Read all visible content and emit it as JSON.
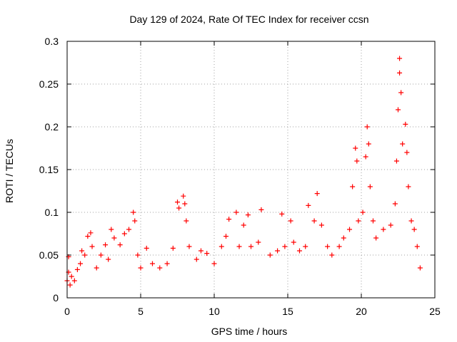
{
  "chart_data": {
    "type": "scatter",
    "title": "Day 129 of 2024, Rate Of TEC Index for receiver ccsn",
    "xlabel": "GPS time / hours",
    "ylabel": "ROTI / TECUs",
    "xlim": [
      0,
      25
    ],
    "ylim": [
      0,
      0.3
    ],
    "x_ticks": [
      "0",
      "5",
      "10",
      "15",
      "20",
      "25"
    ],
    "y_ticks": [
      "0",
      "0.05",
      "0.1",
      "0.15",
      "0.2",
      "0.25",
      "0.3"
    ],
    "grid": true,
    "legend": "none",
    "marker": "plus",
    "color": "#ff0000",
    "series": [
      {
        "points": [
          [
            0.0,
            0.02
          ],
          [
            0.1,
            0.03
          ],
          [
            0.1,
            0.048
          ],
          [
            0.2,
            0.015
          ],
          [
            0.3,
            0.025
          ],
          [
            0.5,
            0.02
          ],
          [
            0.7,
            0.033
          ],
          [
            0.9,
            0.04
          ],
          [
            1.0,
            0.055
          ],
          [
            1.2,
            0.05
          ],
          [
            1.4,
            0.072
          ],
          [
            1.6,
            0.076
          ],
          [
            1.7,
            0.06
          ],
          [
            2.0,
            0.035
          ],
          [
            2.3,
            0.05
          ],
          [
            2.6,
            0.062
          ],
          [
            2.8,
            0.045
          ],
          [
            3.0,
            0.08
          ],
          [
            3.2,
            0.07
          ],
          [
            3.6,
            0.062
          ],
          [
            3.9,
            0.075
          ],
          [
            4.2,
            0.08
          ],
          [
            4.5,
            0.1
          ],
          [
            4.6,
            0.09
          ],
          [
            4.8,
            0.05
          ],
          [
            5.0,
            0.035
          ],
          [
            5.4,
            0.058
          ],
          [
            5.8,
            0.04
          ],
          [
            6.3,
            0.035
          ],
          [
            6.8,
            0.04
          ],
          [
            7.2,
            0.058
          ],
          [
            7.5,
            0.112
          ],
          [
            7.6,
            0.105
          ],
          [
            7.9,
            0.119
          ],
          [
            8.0,
            0.11
          ],
          [
            8.1,
            0.09
          ],
          [
            8.3,
            0.06
          ],
          [
            8.8,
            0.045
          ],
          [
            9.1,
            0.055
          ],
          [
            9.5,
            0.052
          ],
          [
            10.0,
            0.04
          ],
          [
            10.5,
            0.06
          ],
          [
            10.8,
            0.072
          ],
          [
            11.0,
            0.092
          ],
          [
            11.5,
            0.1
          ],
          [
            11.7,
            0.06
          ],
          [
            12.0,
            0.085
          ],
          [
            12.3,
            0.097
          ],
          [
            12.5,
            0.06
          ],
          [
            13.0,
            0.065
          ],
          [
            13.2,
            0.103
          ],
          [
            13.8,
            0.05
          ],
          [
            14.3,
            0.055
          ],
          [
            14.6,
            0.098
          ],
          [
            14.8,
            0.06
          ],
          [
            15.2,
            0.09
          ],
          [
            15.4,
            0.065
          ],
          [
            15.8,
            0.055
          ],
          [
            16.2,
            0.06
          ],
          [
            16.4,
            0.108
          ],
          [
            16.8,
            0.09
          ],
          [
            17.0,
            0.122
          ],
          [
            17.3,
            0.085
          ],
          [
            17.7,
            0.06
          ],
          [
            18.0,
            0.05
          ],
          [
            18.5,
            0.06
          ],
          [
            18.8,
            0.07
          ],
          [
            19.2,
            0.08
          ],
          [
            19.4,
            0.13
          ],
          [
            19.6,
            0.175
          ],
          [
            19.7,
            0.16
          ],
          [
            19.8,
            0.09
          ],
          [
            20.1,
            0.1
          ],
          [
            20.3,
            0.165
          ],
          [
            20.4,
            0.2
          ],
          [
            20.5,
            0.18
          ],
          [
            20.6,
            0.13
          ],
          [
            20.8,
            0.09
          ],
          [
            21.0,
            0.07
          ],
          [
            21.5,
            0.08
          ],
          [
            22.0,
            0.085
          ],
          [
            22.3,
            0.11
          ],
          [
            22.4,
            0.16
          ],
          [
            22.5,
            0.22
          ],
          [
            22.6,
            0.263
          ],
          [
            22.6,
            0.28
          ],
          [
            22.7,
            0.24
          ],
          [
            22.8,
            0.18
          ],
          [
            23.0,
            0.203
          ],
          [
            23.1,
            0.17
          ],
          [
            23.2,
            0.13
          ],
          [
            23.4,
            0.09
          ],
          [
            23.6,
            0.08
          ],
          [
            23.8,
            0.06
          ],
          [
            24.0,
            0.035
          ]
        ]
      }
    ]
  }
}
